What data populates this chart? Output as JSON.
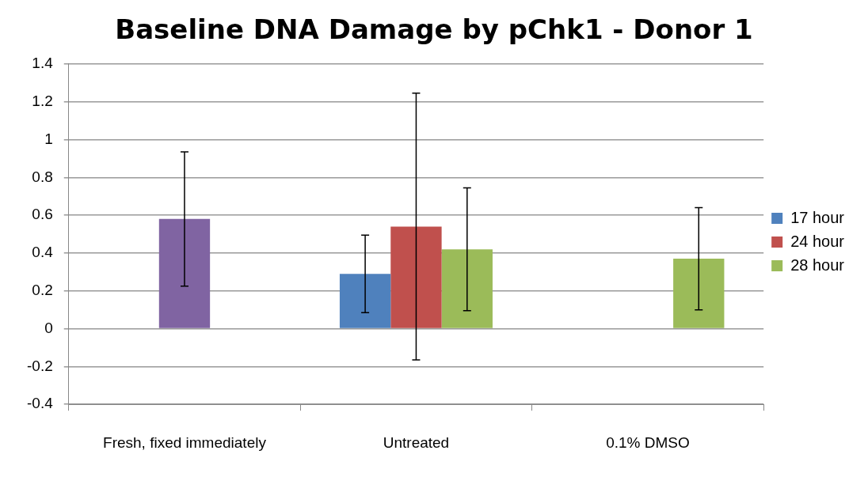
{
  "chart_data": {
    "type": "bar",
    "title": "Baseline DNA Damage by pChk1 - Donor 1",
    "categories": [
      "Fresh, fixed immediately",
      "Untreated",
      "0.1% DMSO"
    ],
    "series": [
      {
        "name": "17 hour",
        "color": "#4f81bd",
        "values": [
          0,
          0.29,
          0
        ],
        "errors": [
          null,
          0.205,
          null
        ]
      },
      {
        "name": "24 hour",
        "color": "#c0504d",
        "colors": [
          "#8064a2",
          "#c0504d",
          "#c0504d"
        ],
        "values": [
          0.58,
          0.54,
          0
        ],
        "errors": [
          0.355,
          0.705,
          null
        ]
      },
      {
        "name": "28 hour",
        "color": "#9bbb59",
        "values": [
          0,
          0.42,
          0.37
        ],
        "errors": [
          null,
          0.325,
          0.27
        ]
      }
    ],
    "ylim": [
      -0.4,
      1.4
    ],
    "yticks": [
      -0.4,
      -0.2,
      0,
      0.2,
      0.4,
      0.6,
      0.8,
      1,
      1.2,
      1.4
    ],
    "grid": "y",
    "legend": "right"
  }
}
